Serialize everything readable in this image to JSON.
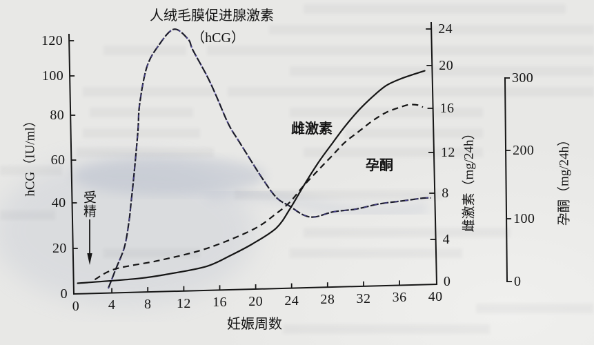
{
  "chart_data": {
    "type": "line",
    "title": "",
    "xlabel": "妊娠周数",
    "xlim": [
      0,
      40
    ],
    "x_ticks": [
      0,
      4,
      8,
      12,
      16,
      20,
      24,
      28,
      32,
      36,
      40
    ],
    "grid": false,
    "legend": "none (curves labeled inline)",
    "axes": {
      "left": {
        "label": "hCG（IU/ml）",
        "ticks": [
          0,
          20,
          40,
          60,
          80,
          100,
          120
        ],
        "ylim": [
          0,
          120
        ]
      },
      "right1": {
        "label": "雌激素（mg/24h）",
        "ticks": [
          0,
          4,
          8,
          12,
          16,
          20,
          24
        ],
        "ylim": [
          0,
          24
        ]
      },
      "right2": {
        "label": "孕酮（mg/24h）",
        "ticks": [
          0,
          100,
          200,
          300
        ],
        "ylim": [
          0,
          300
        ]
      }
    },
    "series": [
      {
        "name": "人绒毛膜促进腺激素（hCG）",
        "label_lines": [
          "人绒毛膜促进腺激素",
          "（hCG）"
        ],
        "axis": "left",
        "unit": "IU/ml",
        "line_style": "long-dash",
        "color": "#1b1b2a",
        "tint_color": "#6a5fe0",
        "points": [
          [
            3.6,
            2
          ],
          [
            4.4,
            10
          ],
          [
            5.4,
            20
          ],
          [
            5.9,
            31
          ],
          [
            6.1,
            38
          ],
          [
            6.5,
            54
          ],
          [
            6.9,
            72
          ],
          [
            7.1,
            85
          ],
          [
            7.9,
            104
          ],
          [
            9.2,
            116
          ],
          [
            10.9,
            125
          ],
          [
            12.5,
            119
          ],
          [
            13.0,
            113
          ],
          [
            14.6,
            98
          ],
          [
            15.6,
            88
          ],
          [
            17.0,
            74
          ],
          [
            18.2,
            66
          ],
          [
            20.6,
            50
          ],
          [
            22.3,
            40
          ],
          [
            23.8,
            36
          ],
          [
            25.3,
            32
          ],
          [
            26.6,
            31
          ],
          [
            28.6,
            33
          ],
          [
            31.2,
            34
          ],
          [
            33.8,
            36
          ],
          [
            36.3,
            37
          ],
          [
            38.6,
            38
          ],
          [
            39.5,
            38
          ]
        ]
      },
      {
        "name": "雌激素",
        "label_lines": [
          "雌激素"
        ],
        "axis": "right1",
        "unit": "mg/24h",
        "line_style": "solid",
        "color": "#151515",
        "points": [
          [
            0.2,
            1.0
          ],
          [
            6.9,
            1.3
          ],
          [
            10.7,
            1.7
          ],
          [
            14.6,
            2.3
          ],
          [
            17.3,
            3.3
          ],
          [
            19.7,
            4.3
          ],
          [
            22.3,
            5.6
          ],
          [
            23.8,
            7.2
          ],
          [
            25.3,
            9.3
          ],
          [
            26.9,
            11.5
          ],
          [
            28.4,
            13.2
          ],
          [
            29.9,
            14.8
          ],
          [
            31.5,
            16.3
          ],
          [
            33.0,
            17.5
          ],
          [
            34.5,
            18.5
          ],
          [
            36.1,
            19.1
          ],
          [
            37.6,
            19.5
          ],
          [
            38.8,
            19.8
          ]
        ]
      },
      {
        "name": "孕酮",
        "label_lines": [
          "孕酮"
        ],
        "axis": "right2",
        "unit": "mg/24h",
        "line_style": "dash",
        "color": "#151515",
        "points": [
          [
            2.1,
            22
          ],
          [
            4.4,
            38
          ],
          [
            9.4,
            50
          ],
          [
            14.6,
            67
          ],
          [
            19.7,
            95
          ],
          [
            22.3,
            118
          ],
          [
            23.8,
            134
          ],
          [
            25.3,
            157
          ],
          [
            26.9,
            179
          ],
          [
            28.4,
            199
          ],
          [
            29.9,
            218
          ],
          [
            31.5,
            233
          ],
          [
            33.0,
            247
          ],
          [
            34.5,
            258
          ],
          [
            36.1,
            265
          ],
          [
            37.1,
            268
          ],
          [
            38.1,
            267
          ],
          [
            38.6,
            264
          ]
        ]
      }
    ],
    "annotations": [
      {
        "text": "受精",
        "x": 1.5,
        "arrow": "down"
      }
    ]
  }
}
